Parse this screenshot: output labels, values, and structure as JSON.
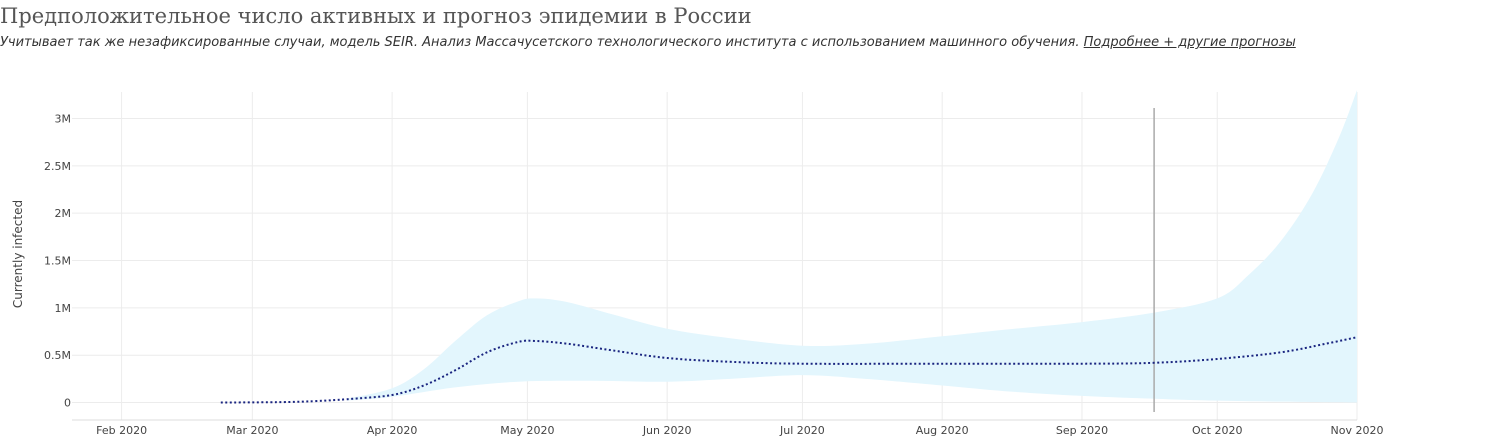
{
  "header": {
    "title": "Предположительное число активных и прогноз эпидемии в России",
    "subtitle_text": "Учитывает так же незафиксированные случаи, модель SEIR. Анализ Массачусетского технологического института с использованием машинного обучения.",
    "subtitle_link": "Подробнее + другие прогнозы"
  },
  "colors": {
    "band": "#e3f6fd",
    "line": "#1a2580",
    "grid": "#ececec",
    "marker": "#aaaaaa",
    "tick_text": "#444444"
  },
  "chart_data": {
    "type": "line",
    "ylabel": "Currently infected",
    "xlim": [
      "2020-01-21",
      "2020-11-01"
    ],
    "ylim": [
      -0.1,
      3.28
    ],
    "y_ticks": [
      {
        "value": 0,
        "label": "0"
      },
      {
        "value": 0.5,
        "label": "0.5M"
      },
      {
        "value": 1,
        "label": "1M"
      },
      {
        "value": 1.5,
        "label": "1.5M"
      },
      {
        "value": 2,
        "label": "2M"
      },
      {
        "value": 2.5,
        "label": "2.5M"
      },
      {
        "value": 3,
        "label": "3M"
      }
    ],
    "x_ticks": [
      {
        "date": "2020-02-01",
        "label": "Feb 2020"
      },
      {
        "date": "2020-03-01",
        "label": "Mar 2020"
      },
      {
        "date": "2020-04-01",
        "label": "Apr 2020"
      },
      {
        "date": "2020-05-01",
        "label": "May 2020"
      },
      {
        "date": "2020-06-01",
        "label": "Jun 2020"
      },
      {
        "date": "2020-07-01",
        "label": "Jul 2020"
      },
      {
        "date": "2020-08-01",
        "label": "Aug 2020"
      },
      {
        "date": "2020-09-01",
        "label": "Sep 2020"
      },
      {
        "date": "2020-10-01",
        "label": "Oct 2020"
      },
      {
        "date": "2020-11-01",
        "label": "Nov 2020"
      }
    ],
    "forecast_marker_date": "2020-09-17",
    "series": [
      {
        "style": "dotted",
        "points": [
          {
            "x": "2020-02-23",
            "y": 0.0
          },
          {
            "x": "2020-03-08",
            "y": 0.005
          },
          {
            "x": "2020-03-15",
            "y": 0.015
          },
          {
            "x": "2020-03-22",
            "y": 0.035
          },
          {
            "x": "2020-04-01",
            "y": 0.08
          },
          {
            "x": "2020-04-08",
            "y": 0.18
          },
          {
            "x": "2020-04-15",
            "y": 0.34
          },
          {
            "x": "2020-04-22",
            "y": 0.53
          },
          {
            "x": "2020-04-29",
            "y": 0.64
          },
          {
            "x": "2020-05-03",
            "y": 0.65
          },
          {
            "x": "2020-05-10",
            "y": 0.62
          },
          {
            "x": "2020-05-20",
            "y": 0.55
          },
          {
            "x": "2020-06-01",
            "y": 0.47
          },
          {
            "x": "2020-06-15",
            "y": 0.43
          },
          {
            "x": "2020-07-01",
            "y": 0.41
          },
          {
            "x": "2020-08-01",
            "y": 0.41
          },
          {
            "x": "2020-09-01",
            "y": 0.41
          },
          {
            "x": "2020-09-17",
            "y": 0.42
          },
          {
            "x": "2020-10-01",
            "y": 0.46
          },
          {
            "x": "2020-10-15",
            "y": 0.53
          },
          {
            "x": "2020-10-25",
            "y": 0.62
          },
          {
            "x": "2020-11-01",
            "y": 0.69
          }
        ]
      }
    ],
    "band": {
      "upper": [
        {
          "x": "2020-03-22",
          "y": 0.04
        },
        {
          "x": "2020-04-01",
          "y": 0.15
        },
        {
          "x": "2020-04-08",
          "y": 0.35
        },
        {
          "x": "2020-04-15",
          "y": 0.65
        },
        {
          "x": "2020-04-22",
          "y": 0.92
        },
        {
          "x": "2020-04-29",
          "y": 1.07
        },
        {
          "x": "2020-05-03",
          "y": 1.1
        },
        {
          "x": "2020-05-10",
          "y": 1.06
        },
        {
          "x": "2020-05-20",
          "y": 0.93
        },
        {
          "x": "2020-06-01",
          "y": 0.78
        },
        {
          "x": "2020-06-15",
          "y": 0.68
        },
        {
          "x": "2020-07-01",
          "y": 0.6
        },
        {
          "x": "2020-07-15",
          "y": 0.62
        },
        {
          "x": "2020-08-01",
          "y": 0.7
        },
        {
          "x": "2020-08-15",
          "y": 0.77
        },
        {
          "x": "2020-09-01",
          "y": 0.85
        },
        {
          "x": "2020-09-17",
          "y": 0.95
        },
        {
          "x": "2020-10-01",
          "y": 1.1
        },
        {
          "x": "2020-10-08",
          "y": 1.35
        },
        {
          "x": "2020-10-15",
          "y": 1.7
        },
        {
          "x": "2020-10-22",
          "y": 2.2
        },
        {
          "x": "2020-10-28",
          "y": 2.8
        },
        {
          "x": "2020-11-01",
          "y": 3.3
        }
      ],
      "lower": [
        {
          "x": "2020-03-22",
          "y": 0.02
        },
        {
          "x": "2020-04-01",
          "y": 0.06
        },
        {
          "x": "2020-04-15",
          "y": 0.16
        },
        {
          "x": "2020-04-29",
          "y": 0.22
        },
        {
          "x": "2020-05-15",
          "y": 0.23
        },
        {
          "x": "2020-06-01",
          "y": 0.22
        },
        {
          "x": "2020-06-15",
          "y": 0.25
        },
        {
          "x": "2020-07-01",
          "y": 0.29
        },
        {
          "x": "2020-07-15",
          "y": 0.25
        },
        {
          "x": "2020-08-01",
          "y": 0.18
        },
        {
          "x": "2020-08-15",
          "y": 0.12
        },
        {
          "x": "2020-09-01",
          "y": 0.07
        },
        {
          "x": "2020-09-17",
          "y": 0.04
        },
        {
          "x": "2020-10-01",
          "y": 0.02
        },
        {
          "x": "2020-10-15",
          "y": 0.01
        },
        {
          "x": "2020-11-01",
          "y": 0.0
        }
      ]
    },
    "grid": true,
    "legend": "none"
  }
}
